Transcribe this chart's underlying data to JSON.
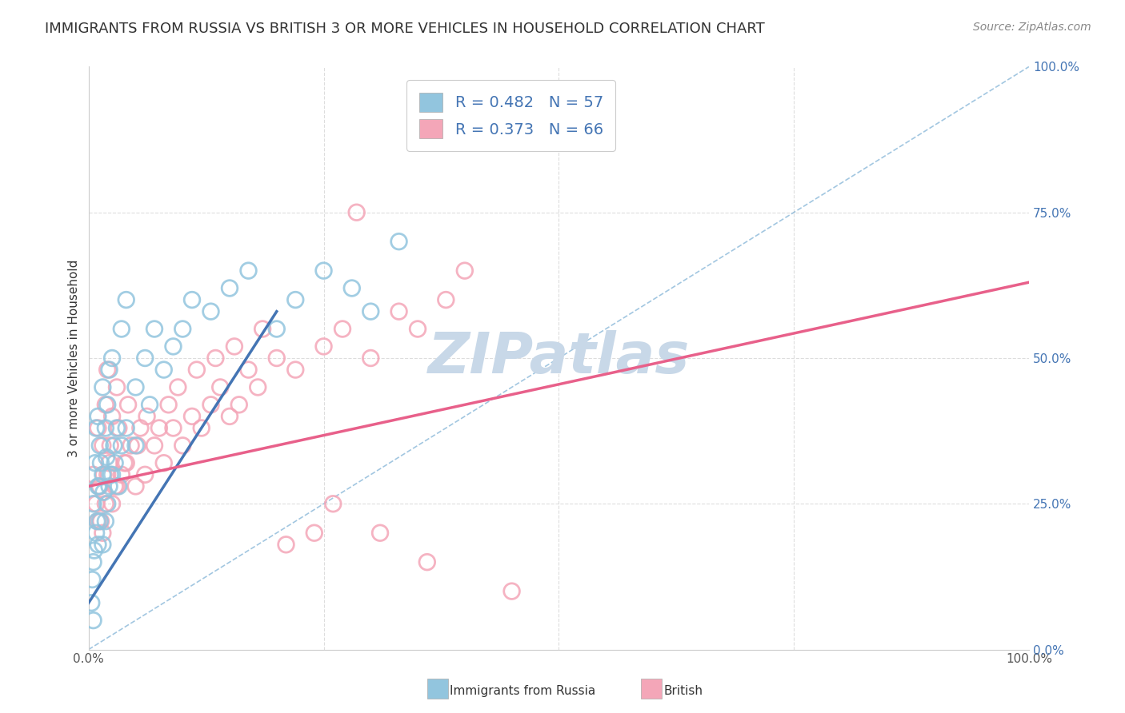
{
  "title": "IMMIGRANTS FROM RUSSIA VS BRITISH 3 OR MORE VEHICLES IN HOUSEHOLD CORRELATION CHART",
  "source": "Source: ZipAtlas.com",
  "ylabel": "3 or more Vehicles in Household",
  "xlim": [
    0,
    100
  ],
  "ylim": [
    0,
    100
  ],
  "xticks": [
    0,
    25,
    50,
    75,
    100
  ],
  "yticks": [
    0,
    25,
    50,
    75,
    100
  ],
  "xtick_labels": [
    "0.0%",
    "",
    "",
    "",
    "100.0%"
  ],
  "ytick_labels_right": [
    "0.0%",
    "25.0%",
    "50.0%",
    "75.0%",
    "100.0%"
  ],
  "blue_color": "#92C5DE",
  "pink_color": "#F4A6B8",
  "blue_line_color": "#4475B4",
  "pink_line_color": "#E8608A",
  "diag_line_color": "#7BAFD4",
  "legend_text_color": "#4475B4",
  "watermark": "ZIPatlas",
  "R_blue": 0.482,
  "N_blue": 57,
  "R_pink": 0.373,
  "N_pink": 66,
  "background_color": "#FFFFFF",
  "grid_color": "#DDDDDD",
  "title_fontsize": 13,
  "axis_label_fontsize": 11,
  "tick_fontsize": 11,
  "watermark_color": "#C8D8E8",
  "watermark_fontsize": 52,
  "blue_x": [
    0.3,
    0.4,
    0.5,
    0.5,
    0.5,
    0.6,
    0.7,
    0.8,
    0.8,
    0.9,
    1.0,
    1.0,
    1.0,
    1.1,
    1.2,
    1.2,
    1.3,
    1.5,
    1.5,
    1.5,
    1.6,
    1.8,
    1.8,
    1.9,
    2.0,
    2.0,
    2.2,
    2.2,
    2.3,
    2.5,
    2.5,
    2.7,
    2.8,
    3.0,
    3.2,
    3.5,
    3.5,
    4.0,
    4.0,
    5.0,
    5.0,
    6.0,
    6.5,
    7.0,
    8.0,
    9.0,
    10.0,
    11.0,
    13.0,
    15.0,
    17.0,
    20.0,
    22.0,
    25.0,
    28.0,
    30.0,
    33.0
  ],
  "blue_y": [
    8.0,
    12.0,
    5.0,
    15.0,
    25.0,
    17.0,
    32.0,
    20.0,
    38.0,
    22.0,
    18.0,
    28.0,
    40.0,
    28.0,
    22.0,
    35.0,
    32.0,
    18.0,
    30.0,
    45.0,
    27.0,
    22.0,
    38.0,
    33.0,
    25.0,
    42.0,
    28.0,
    48.0,
    30.0,
    30.0,
    50.0,
    35.0,
    32.0,
    38.0,
    28.0,
    35.0,
    55.0,
    38.0,
    60.0,
    45.0,
    35.0,
    50.0,
    42.0,
    55.0,
    48.0,
    52.0,
    55.0,
    60.0,
    58.0,
    62.0,
    65.0,
    55.0,
    60.0,
    65.0,
    62.0,
    58.0,
    70.0
  ],
  "pink_x": [
    0.5,
    0.8,
    1.0,
    1.0,
    1.2,
    1.3,
    1.5,
    1.5,
    1.6,
    1.8,
    1.8,
    2.0,
    2.0,
    2.2,
    2.3,
    2.5,
    2.5,
    2.8,
    3.0,
    3.0,
    3.2,
    3.5,
    3.8,
    4.0,
    4.2,
    4.5,
    5.0,
    5.2,
    5.5,
    6.0,
    6.2,
    7.0,
    7.5,
    8.0,
    8.5,
    9.0,
    9.5,
    10.0,
    11.0,
    11.5,
    12.0,
    13.0,
    13.5,
    14.0,
    15.0,
    15.5,
    16.0,
    17.0,
    18.0,
    18.5,
    20.0,
    21.0,
    22.0,
    24.0,
    25.0,
    26.0,
    27.0,
    28.5,
    30.0,
    31.0,
    33.0,
    35.0,
    36.0,
    38.0,
    40.0,
    45.0
  ],
  "pink_y": [
    30.0,
    25.0,
    22.0,
    38.0,
    28.0,
    22.0,
    20.0,
    35.0,
    30.0,
    25.0,
    42.0,
    30.0,
    48.0,
    32.0,
    35.0,
    25.0,
    40.0,
    28.0,
    28.0,
    45.0,
    38.0,
    30.0,
    32.0,
    32.0,
    42.0,
    35.0,
    28.0,
    35.0,
    38.0,
    30.0,
    40.0,
    35.0,
    38.0,
    32.0,
    42.0,
    38.0,
    45.0,
    35.0,
    40.0,
    48.0,
    38.0,
    42.0,
    50.0,
    45.0,
    40.0,
    52.0,
    42.0,
    48.0,
    45.0,
    55.0,
    50.0,
    18.0,
    48.0,
    20.0,
    52.0,
    25.0,
    55.0,
    75.0,
    50.0,
    20.0,
    58.0,
    55.0,
    15.0,
    60.0,
    65.0,
    10.0
  ],
  "blue_line_x0": 0,
  "blue_line_x1": 20,
  "blue_line_y0": 8,
  "blue_line_y1": 58,
  "pink_line_x0": 0,
  "pink_line_x1": 100,
  "pink_line_y0": 28,
  "pink_line_y1": 63
}
